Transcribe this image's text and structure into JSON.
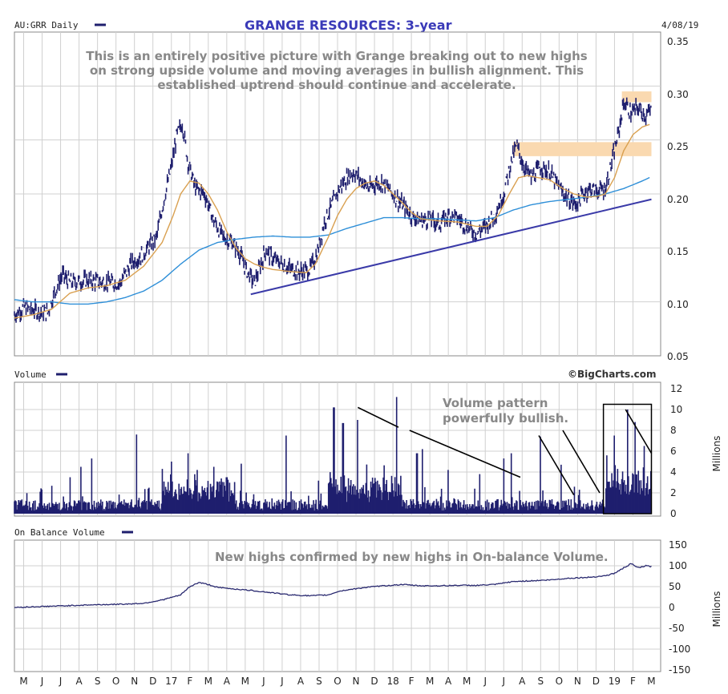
{
  "header": {
    "symbol_label": "AU:GRR Daily",
    "title": "GRANGE RESOURCES: 3-year",
    "date": "4/08/19"
  },
  "colors": {
    "price": "#1f1f6e",
    "ma_short": "#d9a050",
    "ma_long": "#2e8fd8",
    "trendline": "#3a3aa8",
    "zone": "#fad9b0",
    "grid": "#d0d0d0",
    "volume": "#1f1f6e",
    "obv": "#2a2a70",
    "title": "#3a3ab8",
    "annotation": "#888888"
  },
  "annotations": {
    "price_note": [
      "This is an entirely positive picture with Grange breaking out to new highs",
      "on strong upside volume and moving averages in bullish alignment. This",
      "established uptrend should continue and accelerate."
    ],
    "volume_note": [
      "Volume  pattern",
      "powerfully bullish."
    ],
    "obv_note": "New highs confirmed by new highs in On-balance Volume.",
    "brand": "©BigCharts.com"
  },
  "panels": {
    "volume_label": "Volume",
    "obv_label": "On Balance Volume",
    "millions": "Millions"
  },
  "x_axis": {
    "labels": [
      "M",
      "J",
      "J",
      "A",
      "S",
      "O",
      "N",
      "D",
      "17",
      "F",
      "M",
      "A",
      "M",
      "J",
      "J",
      "A",
      "S",
      "O",
      "N",
      "D",
      "18",
      "F",
      "M",
      "A",
      "M",
      "J",
      "J",
      "A",
      "S",
      "O",
      "N",
      "D",
      "19",
      "F",
      "M"
    ]
  },
  "chart_data": [
    {
      "type": "line",
      "name": "price",
      "x_start": "2016-04",
      "x_end": "2019-04-08",
      "y_ticks": [
        "0.35",
        "0.30",
        "0.25",
        "0.20",
        "0.15",
        "0.10",
        "0.05"
      ],
      "ylim": [
        0.05,
        0.35
      ],
      "price_keyframes": [
        [
          0,
          0.088
        ],
        [
          0.5,
          0.095
        ],
        [
          1.3,
          0.091
        ],
        [
          1.8,
          0.09
        ],
        [
          2.2,
          0.11
        ],
        [
          2.6,
          0.125
        ],
        [
          3,
          0.118
        ],
        [
          4,
          0.12
        ],
        [
          5,
          0.118
        ],
        [
          5.7,
          0.117
        ],
        [
          6.3,
          0.135
        ],
        [
          7,
          0.145
        ],
        [
          7.7,
          0.16
        ],
        [
          8.1,
          0.195
        ],
        [
          8.5,
          0.225
        ],
        [
          8.8,
          0.255
        ],
        [
          9.1,
          0.265
        ],
        [
          9.4,
          0.23
        ],
        [
          9.8,
          0.205
        ],
        [
          10.3,
          0.2
        ],
        [
          10.8,
          0.175
        ],
        [
          11.3,
          0.16
        ],
        [
          11.8,
          0.155
        ],
        [
          12.2,
          0.145
        ],
        [
          12.6,
          0.128
        ],
        [
          13,
          0.118
        ],
        [
          13.3,
          0.132
        ],
        [
          13.6,
          0.148
        ],
        [
          14,
          0.14
        ],
        [
          14.5,
          0.135
        ],
        [
          15,
          0.13
        ],
        [
          15.6,
          0.128
        ],
        [
          16,
          0.13
        ],
        [
          16.4,
          0.145
        ],
        [
          16.8,
          0.175
        ],
        [
          17.2,
          0.19
        ],
        [
          17.6,
          0.205
        ],
        [
          18,
          0.215
        ],
        [
          18.4,
          0.22
        ],
        [
          18.8,
          0.212
        ],
        [
          19.2,
          0.205
        ],
        [
          19.6,
          0.21
        ],
        [
          20,
          0.21
        ],
        [
          20.5,
          0.2
        ],
        [
          21,
          0.19
        ],
        [
          21.5,
          0.18
        ],
        [
          22,
          0.175
        ],
        [
          22.5,
          0.177
        ],
        [
          23,
          0.172
        ],
        [
          23.5,
          0.18
        ],
        [
          24,
          0.178
        ],
        [
          24.5,
          0.17
        ],
        [
          25,
          0.163
        ],
        [
          25.5,
          0.17
        ],
        [
          26,
          0.18
        ],
        [
          26.5,
          0.2
        ],
        [
          26.9,
          0.23
        ],
        [
          27.2,
          0.245
        ],
        [
          27.6,
          0.225
        ],
        [
          28,
          0.215
        ],
        [
          28.5,
          0.225
        ],
        [
          29,
          0.22
        ],
        [
          29.5,
          0.205
        ],
        [
          30,
          0.195
        ],
        [
          30.4,
          0.19
        ],
        [
          30.8,
          0.2
        ],
        [
          31.2,
          0.205
        ],
        [
          31.6,
          0.203
        ],
        [
          32,
          0.205
        ],
        [
          32.3,
          0.225
        ],
        [
          32.7,
          0.255
        ],
        [
          33,
          0.285
        ],
        [
          33.4,
          0.275
        ],
        [
          33.8,
          0.28
        ],
        [
          34.2,
          0.272
        ],
        [
          34.5,
          0.278
        ]
      ],
      "ma_short_keyframes": [
        [
          0,
          0.085
        ],
        [
          1,
          0.088
        ],
        [
          2,
          0.093
        ],
        [
          3,
          0.108
        ],
        [
          4,
          0.113
        ],
        [
          5,
          0.115
        ],
        [
          6,
          0.12
        ],
        [
          7,
          0.133
        ],
        [
          8,
          0.155
        ],
        [
          8.6,
          0.18
        ],
        [
          9,
          0.2
        ],
        [
          9.5,
          0.212
        ],
        [
          10,
          0.21
        ],
        [
          10.5,
          0.2
        ],
        [
          11,
          0.185
        ],
        [
          11.5,
          0.165
        ],
        [
          12,
          0.15
        ],
        [
          12.5,
          0.14
        ],
        [
          13,
          0.135
        ],
        [
          13.5,
          0.132
        ],
        [
          14,
          0.13
        ],
        [
          15,
          0.128
        ],
        [
          15.8,
          0.127
        ],
        [
          16.3,
          0.135
        ],
        [
          17,
          0.16
        ],
        [
          17.5,
          0.18
        ],
        [
          18,
          0.195
        ],
        [
          18.5,
          0.205
        ],
        [
          19,
          0.21
        ],
        [
          19.5,
          0.212
        ],
        [
          20,
          0.208
        ],
        [
          20.5,
          0.2
        ],
        [
          21,
          0.192
        ],
        [
          21.5,
          0.183
        ],
        [
          22,
          0.177
        ],
        [
          23,
          0.175
        ],
        [
          24,
          0.174
        ],
        [
          25,
          0.17
        ],
        [
          25.6,
          0.17
        ],
        [
          26.2,
          0.18
        ],
        [
          26.8,
          0.2
        ],
        [
          27.3,
          0.215
        ],
        [
          27.8,
          0.217
        ],
        [
          28.4,
          0.215
        ],
        [
          29,
          0.213
        ],
        [
          29.7,
          0.205
        ],
        [
          30.3,
          0.2
        ],
        [
          31,
          0.197
        ],
        [
          31.6,
          0.198
        ],
        [
          32,
          0.2
        ],
        [
          32.5,
          0.215
        ],
        [
          33,
          0.24
        ],
        [
          33.5,
          0.255
        ],
        [
          34,
          0.262
        ],
        [
          34.5,
          0.265
        ]
      ],
      "ma_long_keyframes": [
        [
          0,
          0.102
        ],
        [
          1,
          0.1
        ],
        [
          2,
          0.1
        ],
        [
          3,
          0.098
        ],
        [
          4,
          0.098
        ],
        [
          5,
          0.1
        ],
        [
          6,
          0.104
        ],
        [
          7,
          0.11
        ],
        [
          8,
          0.12
        ],
        [
          9,
          0.135
        ],
        [
          10,
          0.148
        ],
        [
          11,
          0.155
        ],
        [
          12,
          0.158
        ],
        [
          13,
          0.16
        ],
        [
          14,
          0.161
        ],
        [
          15,
          0.16
        ],
        [
          16,
          0.16
        ],
        [
          17,
          0.162
        ],
        [
          18,
          0.168
        ],
        [
          19,
          0.173
        ],
        [
          20,
          0.178
        ],
        [
          21,
          0.178
        ],
        [
          22,
          0.177
        ],
        [
          23,
          0.177
        ],
        [
          24,
          0.176
        ],
        [
          25,
          0.175
        ],
        [
          26,
          0.178
        ],
        [
          27,
          0.185
        ],
        [
          28,
          0.19
        ],
        [
          29,
          0.193
        ],
        [
          30,
          0.195
        ],
        [
          31,
          0.197
        ],
        [
          32,
          0.2
        ],
        [
          33,
          0.205
        ],
        [
          34,
          0.212
        ],
        [
          34.5,
          0.216
        ]
      ],
      "trendline": [
        [
          12.8,
          0.107
        ],
        [
          34.5,
          0.195
        ]
      ],
      "resistance_zones": [
        [
          27,
          0.235,
          34.5,
          0.248
        ],
        [
          32.9,
          0.285,
          34.5,
          0.295
        ]
      ]
    },
    {
      "type": "bar",
      "name": "volume",
      "y_ticks": [
        "12",
        "10",
        "8",
        "6",
        "4",
        "2",
        "0"
      ],
      "ylim": [
        0,
        12
      ],
      "spikes": [
        [
          3,
          3.5
        ],
        [
          3.6,
          4.5
        ],
        [
          4.2,
          5.3
        ],
        [
          6.6,
          7.6
        ],
        [
          8,
          4.3
        ],
        [
          8.5,
          5
        ],
        [
          9.4,
          5.8
        ],
        [
          9.9,
          4.2
        ],
        [
          10.8,
          4.5
        ],
        [
          11.5,
          3.5
        ],
        [
          12.3,
          4.8
        ],
        [
          14.7,
          7.5
        ],
        [
          17.3,
          10.2
        ],
        [
          17.8,
          8.7
        ],
        [
          18.6,
          9
        ],
        [
          20.7,
          11.2
        ],
        [
          21.8,
          5.8
        ],
        [
          22.1,
          6.2
        ],
        [
          23.5,
          4.2
        ],
        [
          25.2,
          3.8
        ],
        [
          26.5,
          5.3
        ],
        [
          26.9,
          5.8
        ],
        [
          28.5,
          7.4
        ],
        [
          29.6,
          4.7
        ],
        [
          30.6,
          2.3
        ],
        [
          32.1,
          5.6
        ],
        [
          32.5,
          7.5
        ],
        [
          33.2,
          10
        ],
        [
          33.6,
          8.8
        ],
        [
          34.1,
          6.5
        ]
      ],
      "trend_lines": [
        [
          18.6,
          10.2,
          20.8,
          8.3
        ],
        [
          21.4,
          8.0,
          27.4,
          3.5
        ],
        [
          28.4,
          7.5,
          30.3,
          1.8
        ],
        [
          29.7,
          8.0,
          31.7,
          2.0
        ],
        [
          33.1,
          10.0,
          34.5,
          5.8
        ]
      ],
      "highlight_box": [
        31.9,
        10.5,
        34.5,
        0
      ]
    },
    {
      "type": "line",
      "name": "on_balance_volume",
      "y_ticks": [
        "150",
        "100",
        "50",
        "0",
        "-50",
        "-100",
        "-150"
      ],
      "ylim": [
        -150,
        150
      ],
      "obv_keyframes": [
        [
          0,
          0
        ],
        [
          2,
          3
        ],
        [
          4,
          6
        ],
        [
          6,
          8
        ],
        [
          7,
          10
        ],
        [
          8,
          18
        ],
        [
          9,
          30
        ],
        [
          9.5,
          50
        ],
        [
          10,
          60
        ],
        [
          10.5,
          55
        ],
        [
          11,
          48
        ],
        [
          12,
          44
        ],
        [
          13,
          40
        ],
        [
          14,
          35
        ],
        [
          15,
          30
        ],
        [
          16,
          28
        ],
        [
          17,
          30
        ],
        [
          17.5,
          38
        ],
        [
          18,
          42
        ],
        [
          19,
          48
        ],
        [
          20,
          52
        ],
        [
          21,
          55
        ],
        [
          22,
          52
        ],
        [
          23,
          52
        ],
        [
          24,
          53
        ],
        [
          25,
          53
        ],
        [
          26,
          55
        ],
        [
          27,
          62
        ],
        [
          28,
          64
        ],
        [
          29,
          66
        ],
        [
          30,
          70
        ],
        [
          31,
          72
        ],
        [
          32,
          76
        ],
        [
          32.5,
          82
        ],
        [
          33,
          95
        ],
        [
          33.4,
          105
        ],
        [
          33.8,
          95
        ],
        [
          34.2,
          100
        ],
        [
          34.5,
          98
        ]
      ]
    }
  ]
}
